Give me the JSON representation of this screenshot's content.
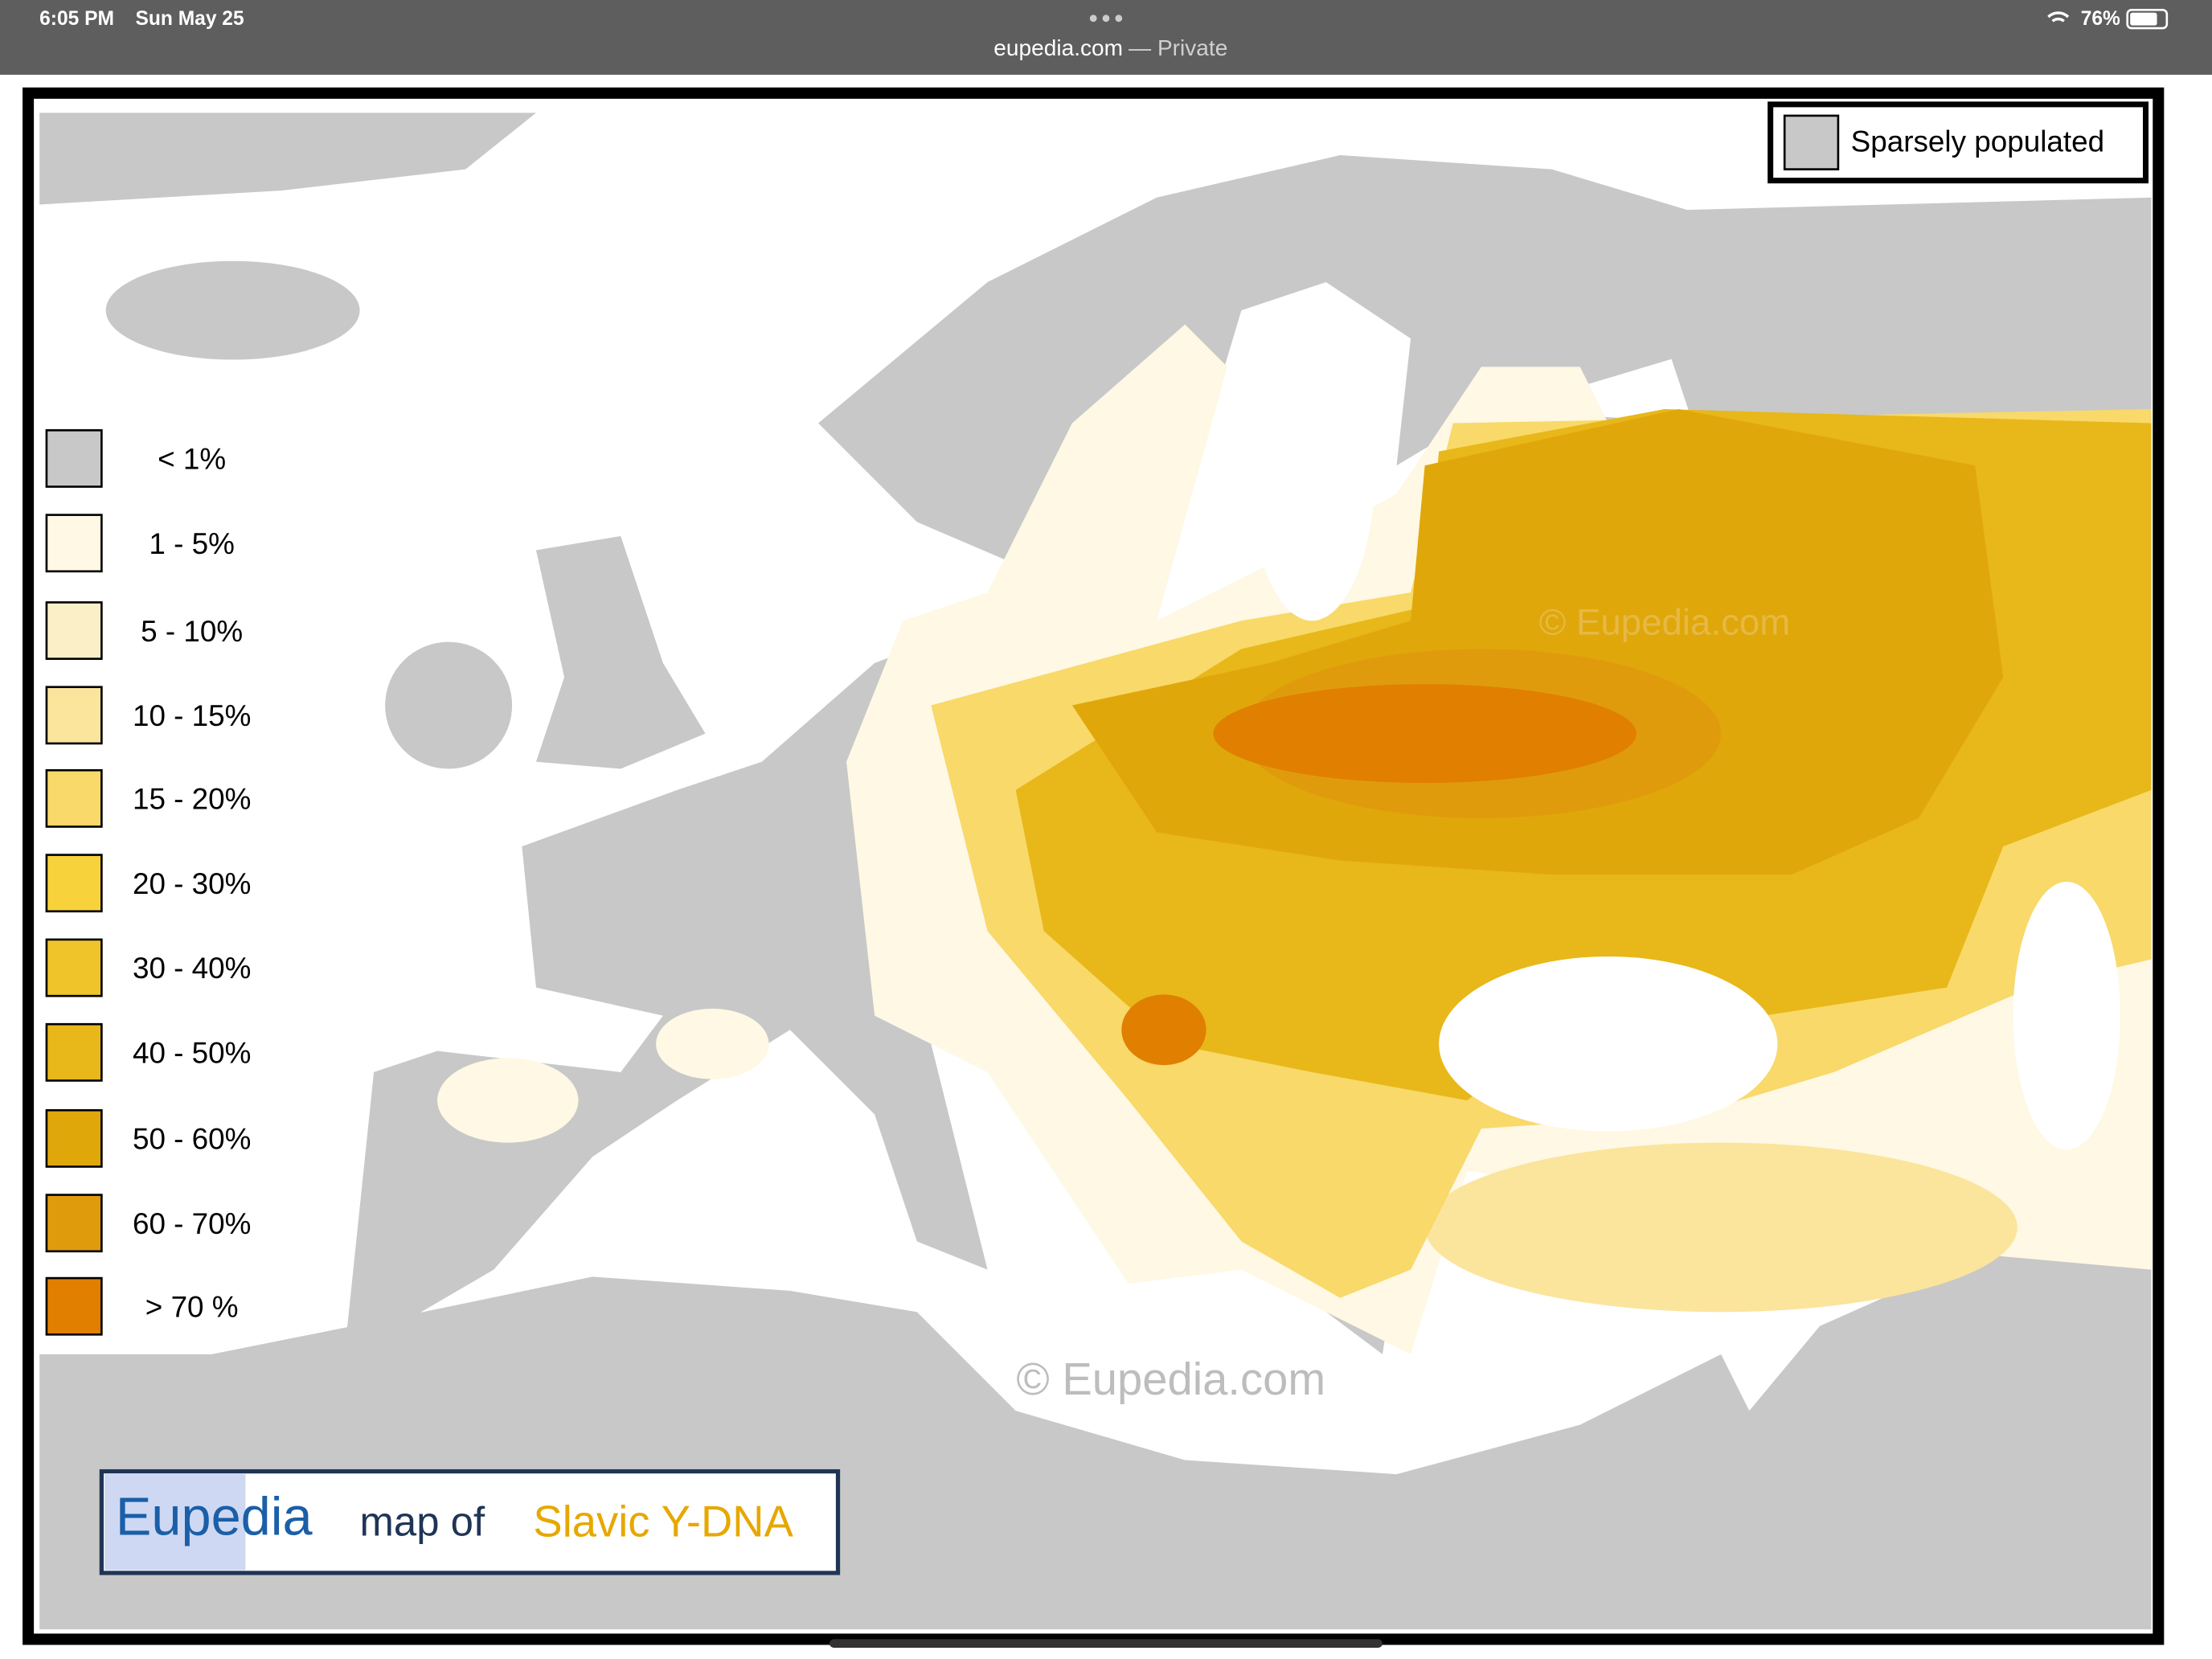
{
  "status_bar": {
    "time": "6:05 PM",
    "date": "Sun May 25",
    "url": "eupedia.com",
    "private": "— Private",
    "battery": "76%"
  },
  "map": {
    "sparse_label": "Sparsely populated",
    "watermark_top": "© Eupedia.com",
    "watermark_bottom": "© Eupedia.com",
    "title": {
      "brand": "Eupedia",
      "middle": "map of",
      "subject": "Slavic Y-DNA"
    },
    "legend": [
      {
        "label": "< 1%",
        "color": "#c8c8c8"
      },
      {
        "label": "1 - 5%",
        "color": "#fef8e4"
      },
      {
        "label": "5 - 10%",
        "color": "#fbefc8"
      },
      {
        "label": "10 - 15%",
        "color": "#fbe49c"
      },
      {
        "label": "15 - 20%",
        "color": "#f8d96a"
      },
      {
        "label": "20 - 30%",
        "color": "#f8d23a"
      },
      {
        "label": "30 - 40%",
        "color": "#efc42b"
      },
      {
        "label": "40 - 50%",
        "color": "#e8b719"
      },
      {
        "label": "50 - 60%",
        "color": "#e0a70b"
      },
      {
        "label": "60 - 70%",
        "color": "#e09b0c"
      },
      {
        "label": "> 70 %",
        "color": "#e07f00"
      }
    ]
  }
}
